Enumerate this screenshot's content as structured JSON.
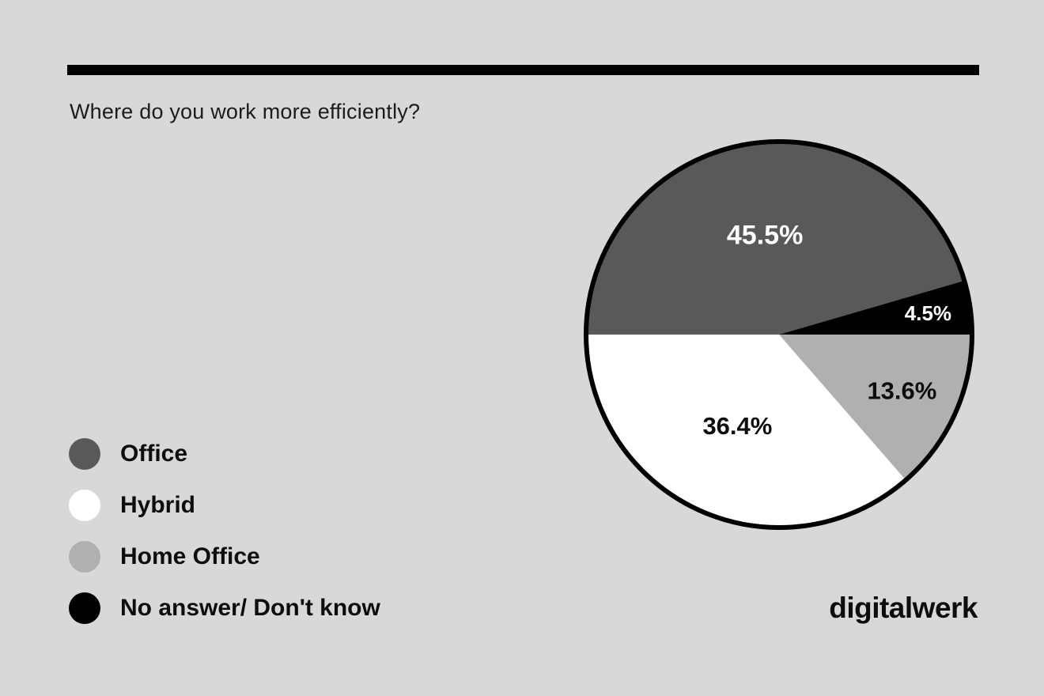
{
  "canvas": {
    "background": "#d8d8d8",
    "rule_color": "#000000"
  },
  "header": {
    "title": "Where do you work more efficiently?"
  },
  "brand": {
    "logo_text": "digitalwerk"
  },
  "chart_data": {
    "type": "pie",
    "title": "Where do you work more efficiently?",
    "value_unit": "percent",
    "start_angle_deg": 270,
    "direction": "clockwise",
    "outline_color": "#000000",
    "outline_width": 6,
    "slices": [
      {
        "label": "Office",
        "value": 45.5,
        "display": "45.5%",
        "color": "#595959",
        "label_color": "#ffffff",
        "label_radius": 0.52,
        "label_size": 34
      },
      {
        "label": "No answer/ Don't know",
        "value": 4.5,
        "display": "4.5%",
        "color": "#000000",
        "label_color": "#ffffff",
        "label_radius": 0.78,
        "label_size": 26
      },
      {
        "label": "Home Office",
        "value": 13.6,
        "display": "13.6%",
        "color": "#b0b0b0",
        "label_color": "#0d0d0d",
        "label_radius": 0.7,
        "label_size": 31
      },
      {
        "label": "Hybrid",
        "value": 36.4,
        "display": "36.4%",
        "color": "#ffffff",
        "label_color": "#0d0d0d",
        "label_radius": 0.52,
        "label_size": 31
      }
    ],
    "legend_position": "bottom-left"
  },
  "legend": {
    "items": [
      {
        "label": "Office",
        "color": "#595959"
      },
      {
        "label": "Hybrid",
        "color": "#ffffff"
      },
      {
        "label": "Home Office",
        "color": "#b0b0b0"
      },
      {
        "label": "No answer/ Don't know",
        "color": "#000000"
      }
    ]
  }
}
